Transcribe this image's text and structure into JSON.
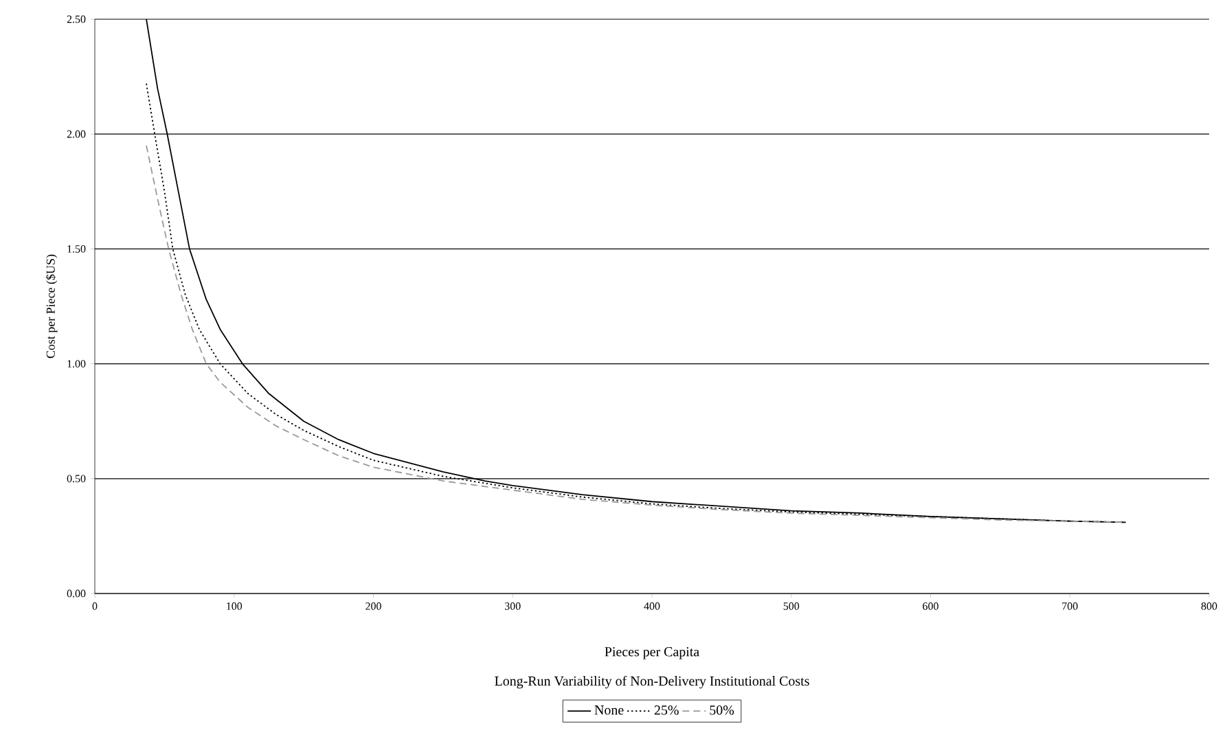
{
  "chart_data": {
    "type": "line",
    "xlabel": "Pieces per Capita",
    "ylabel": "Cost per Piece ($US)",
    "legend_title": "Long-Run Variability of Non-Delivery Institutional Costs",
    "xlim": [
      0,
      800
    ],
    "ylim": [
      0,
      2.5
    ],
    "xticks": [
      0,
      100,
      200,
      300,
      400,
      500,
      600,
      700,
      800
    ],
    "yticks": [
      {
        "value": 0,
        "label": "0.00"
      },
      {
        "value": 0.5,
        "label": "0.50"
      },
      {
        "value": 1,
        "label": "1.00"
      },
      {
        "value": 1.5,
        "label": "1.50"
      },
      {
        "value": 2,
        "label": "2.00"
      },
      {
        "value": 2.5,
        "label": "2.50"
      }
    ],
    "grid": "y",
    "legend": "bottom",
    "marker": "none",
    "series": [
      {
        "name": "None",
        "color": "#000000",
        "line_style": "solid",
        "x": [
          37,
          45,
          52,
          60,
          68,
          80,
          90,
          106,
          125,
          150,
          175,
          200,
          250,
          280,
          300,
          350,
          400,
          450,
          500,
          550,
          600,
          650,
          700,
          740
        ],
        "values": [
          2.5,
          2.2,
          2.0,
          1.75,
          1.5,
          1.28,
          1.15,
          1.0,
          0.87,
          0.75,
          0.67,
          0.61,
          0.53,
          0.49,
          0.47,
          0.43,
          0.4,
          0.38,
          0.36,
          0.35,
          0.335,
          0.325,
          0.315,
          0.31
        ]
      },
      {
        "name": "25%",
        "color": "#000000",
        "line_style": "dotted",
        "x": [
          37,
          43,
          50,
          56,
          65,
          75,
          90,
          110,
          130,
          150,
          175,
          200,
          250,
          300,
          350,
          400,
          450,
          500,
          550,
          600,
          650,
          700,
          740
        ],
        "values": [
          2.22,
          2.0,
          1.75,
          1.5,
          1.3,
          1.15,
          1.0,
          0.87,
          0.78,
          0.71,
          0.64,
          0.58,
          0.51,
          0.46,
          0.42,
          0.39,
          0.37,
          0.355,
          0.345,
          0.335,
          0.325,
          0.315,
          0.31
        ]
      },
      {
        "name": "50%",
        "color": "#999999",
        "line_style": "dashed",
        "x": [
          37,
          45,
          53,
          62,
          70,
          80,
          90,
          110,
          130,
          150,
          175,
          200,
          250,
          300,
          350,
          400,
          450,
          500,
          550,
          600,
          650,
          700,
          740
        ],
        "values": [
          1.95,
          1.72,
          1.5,
          1.3,
          1.15,
          1.0,
          0.92,
          0.81,
          0.73,
          0.67,
          0.6,
          0.55,
          0.49,
          0.45,
          0.41,
          0.385,
          0.365,
          0.35,
          0.34,
          0.33,
          0.32,
          0.315,
          0.31
        ]
      }
    ]
  }
}
